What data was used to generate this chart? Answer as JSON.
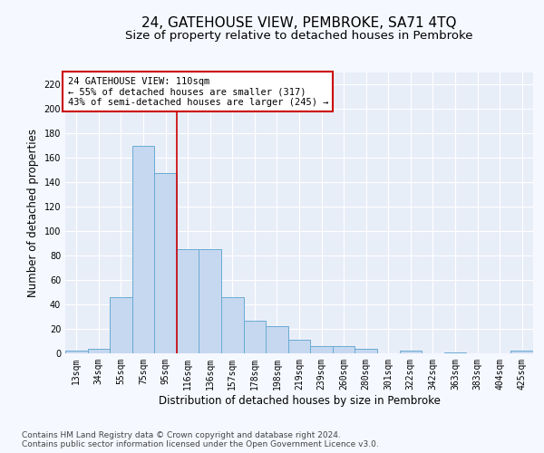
{
  "title": "24, GATEHOUSE VIEW, PEMBROKE, SA71 4TQ",
  "subtitle": "Size of property relative to detached houses in Pembroke",
  "xlabel": "Distribution of detached houses by size in Pembroke",
  "ylabel": "Number of detached properties",
  "footer_line1": "Contains HM Land Registry data © Crown copyright and database right 2024.",
  "footer_line2": "Contains public sector information licensed under the Open Government Licence v3.0.",
  "categories": [
    "13sqm",
    "34sqm",
    "55sqm",
    "75sqm",
    "95sqm",
    "116sqm",
    "136sqm",
    "157sqm",
    "178sqm",
    "198sqm",
    "219sqm",
    "239sqm",
    "260sqm",
    "280sqm",
    "301sqm",
    "322sqm",
    "342sqm",
    "363sqm",
    "383sqm",
    "404sqm",
    "425sqm"
  ],
  "values": [
    2,
    4,
    46,
    170,
    148,
    85,
    85,
    46,
    27,
    22,
    11,
    6,
    6,
    4,
    0,
    2,
    0,
    1,
    0,
    0,
    2
  ],
  "bar_color": "#c5d8f0",
  "bar_edge_color": "#6aaad4",
  "annotation_box_text": "24 GATEHOUSE VIEW: 110sqm\n← 55% of detached houses are smaller (317)\n43% of semi-detached houses are larger (245) →",
  "annotation_box_color": "#ffffff",
  "annotation_box_edge_color": "#cc0000",
  "vline_x_index": 4.5,
  "vline_color": "#cc0000",
  "ylim": [
    0,
    230
  ],
  "yticks": [
    0,
    20,
    40,
    60,
    80,
    100,
    120,
    140,
    160,
    180,
    200,
    220
  ],
  "bg_color": "#e8eef8",
  "grid_color": "#ffffff",
  "fig_bg_color": "#f5f8ff",
  "title_fontsize": 11,
  "subtitle_fontsize": 9.5,
  "axis_label_fontsize": 8.5,
  "tick_fontsize": 7,
  "annotation_fontsize": 7.5,
  "footer_fontsize": 6.5
}
